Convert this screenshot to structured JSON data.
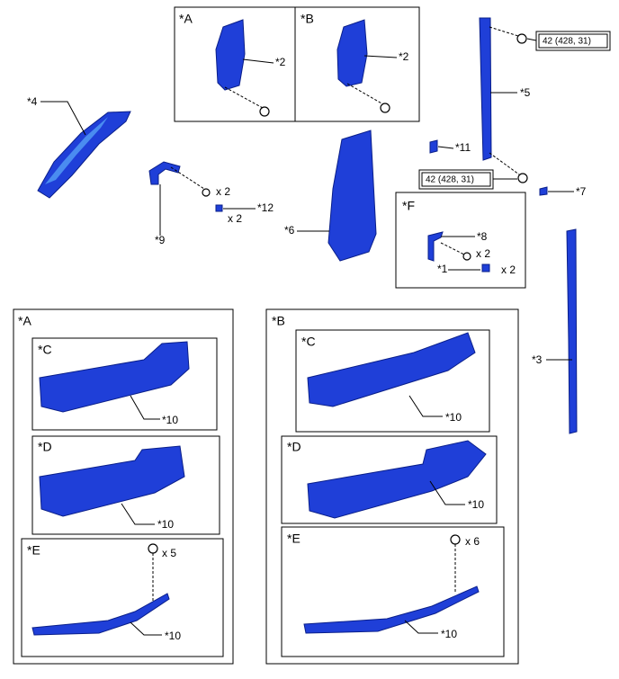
{
  "detail_a": {
    "label": "*A",
    "callout": "*2"
  },
  "detail_b": {
    "label": "*B",
    "callout": "*2"
  },
  "callouts": {
    "part_4": "*4",
    "part_9": "*9",
    "screw_qty": "x 2",
    "part_12": "*12",
    "clip_qty": "x 2",
    "part_6": "*6",
    "part_5": "*5",
    "torque_upper": "42 (428, 31)",
    "torque_lower": "42 (428, 31)",
    "part_11": "*11",
    "part_7": "*7",
    "part_3": "*3"
  },
  "detail_f": {
    "label": "*F",
    "part_8": "*8",
    "screw_qty": "x 2",
    "part_1": "*1",
    "clip_qty": "x 2"
  },
  "view_a": {
    "label": "*A",
    "view_c": {
      "label": "*C",
      "callout": "*10"
    },
    "view_d": {
      "label": "*D",
      "callout": "*10"
    },
    "view_e": {
      "label": "*E",
      "screw_qty": "x 5",
      "callout": "*10"
    }
  },
  "view_b": {
    "label": "*B",
    "view_c": {
      "label": "*C",
      "callout": "*10"
    },
    "view_d": {
      "label": "*D",
      "callout": "*10"
    },
    "view_e": {
      "label": "*E",
      "screw_qty": "x 6",
      "callout": "*10"
    }
  }
}
